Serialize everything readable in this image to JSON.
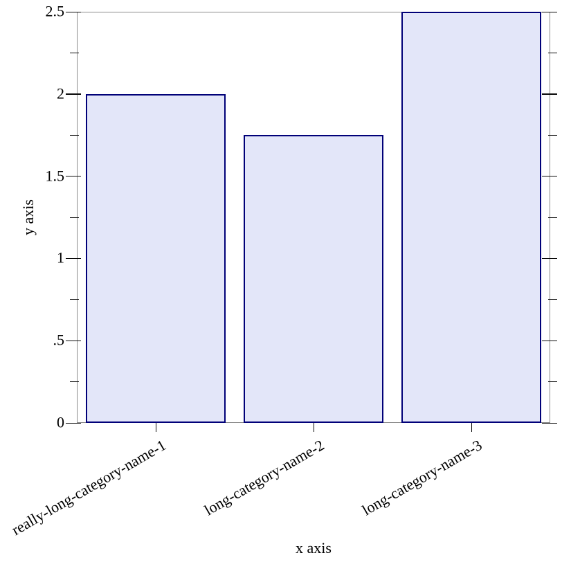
{
  "chart_data": {
    "type": "bar",
    "title": "",
    "xlabel": "x axis",
    "ylabel": "y axis",
    "categories": [
      "really-long-category-name-1",
      "long-category-name-2",
      "long-category-name-3"
    ],
    "values": [
      2,
      1.75,
      2.5
    ],
    "ylim": [
      0,
      2.5
    ],
    "yticks_major": [
      {
        "v": 0,
        "label": "0"
      },
      {
        "v": 0.5,
        "label": ".5"
      },
      {
        "v": 1,
        "label": "1"
      },
      {
        "v": 1.5,
        "label": "1.5"
      },
      {
        "v": 2,
        "label": "2"
      },
      {
        "v": 2.5,
        "label": "2.5"
      }
    ],
    "yticks_minor": [
      0.25,
      0.75,
      1.25,
      1.75,
      2.25
    ],
    "category_label_angle_deg": -30,
    "grid": false,
    "legend": "none",
    "colors": {
      "bar_fill": "#e3e6f9",
      "bar_border": "#000078",
      "frame": "#8a8a8a",
      "tick": "#0a0a0a",
      "text": "#000000",
      "background": "#ffffff"
    }
  }
}
